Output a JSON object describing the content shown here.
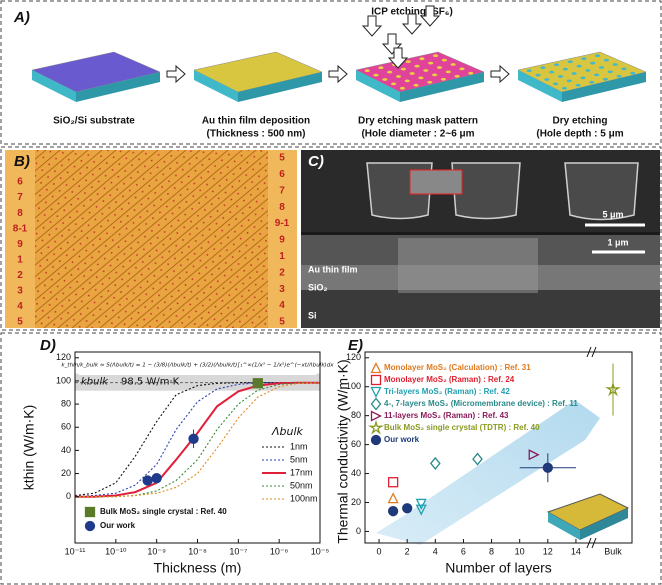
{
  "panel_a": {
    "label": "A)",
    "etching": "ICP etching (SF₆)",
    "steps": [
      {
        "line1": "SiO₂/Si substrate"
      },
      {
        "line1": "Au thin film deposition",
        "line2": "(Thickness : 500 nm)"
      },
      {
        "line1": "Dry etching mask pattern",
        "line2": "(Hole diameter : 2~6 μm"
      },
      {
        "line1": "Dry etching",
        "line2": "(Hole depth : 5 μm"
      }
    ]
  },
  "panel_b": {
    "label": "B)",
    "left_labels": [
      "6",
      "7",
      "8",
      "8-1",
      "9",
      "1",
      "2",
      "3",
      "4",
      "5"
    ],
    "right_labels": [
      "5",
      "6",
      "7",
      "8",
      "9-1",
      "9",
      "1",
      "2",
      "3",
      "4",
      "5"
    ]
  },
  "panel_c": {
    "label": "C)",
    "scale_top": "5 μm",
    "scale_bottom": "1 μm",
    "layer_au": "Au thin film",
    "layer_sio2": "SiO₂",
    "layer_si": "Si"
  },
  "chart_data": [
    {
      "type": "line",
      "panel_label": "D)",
      "formula": "k_thin/k_bulk ≈ S(Λbulk/t) = 1 − (3/8)(Λbulk/t) + (3/2)(Λbulk/t)∫₁^∞(1/x³ − 1/x⁵)e^(−xt/Λbulk)dx",
      "kbulk_symbol": "kbulk",
      "kbulk": {
        "value": 98.5,
        "label": "98.5 W/m·K"
      },
      "xlabel": "Thickness (m)",
      "ylabel": "kthin (W/m·K)",
      "log_x": true,
      "xlim": [
        1e-11,
        1e-05
      ],
      "ylim": [
        -40,
        125
      ],
      "xticks": [
        {
          "value": 1e-11,
          "label": "10⁻¹¹"
        },
        {
          "value": 1e-10,
          "label": "10⁻¹⁰"
        },
        {
          "value": 1e-09,
          "label": "10⁻⁹"
        },
        {
          "value": 1e-08,
          "label": "10⁻⁸"
        },
        {
          "value": 1e-07,
          "label": "10⁻⁷"
        },
        {
          "value": 1e-06,
          "label": "10⁻⁶"
        },
        {
          "value": 1e-05,
          "label": "10⁻⁵"
        }
      ],
      "yticks": [
        0,
        20,
        40,
        60,
        80,
        100,
        120
      ],
      "legend_title": "Λbulk",
      "x": [
        1e-11,
        3e-11,
        1e-10,
        3e-10,
        1e-09,
        3e-09,
        1e-08,
        3e-08,
        1e-07,
        3e-07,
        1e-06,
        3e-06,
        1e-05
      ],
      "series": [
        {
          "name": "1nm",
          "color": "#111111",
          "dash": "2,2",
          "values": [
            1,
            3,
            12,
            35,
            65,
            88,
            96,
            98,
            98.5,
            98.5,
            98.5,
            98.5,
            98.5
          ]
        },
        {
          "name": "5nm",
          "color": "#2a3fb0",
          "dash": "2,2",
          "values": [
            0,
            1,
            3,
            10,
            28,
            58,
            82,
            93,
            97,
            98.5,
            98.5,
            98.5,
            98.5
          ]
        },
        {
          "name": "17nm",
          "color": "#e0203a",
          "dash": "",
          "values": [
            0,
            0,
            1,
            4,
            12,
            32,
            55,
            78,
            91,
            96,
            98,
            98.5,
            98.5
          ]
        },
        {
          "name": "50nm",
          "color": "#3a8a3a",
          "dash": "2,2",
          "values": [
            0,
            0,
            0,
            1,
            5,
            14,
            32,
            58,
            80,
            92,
            97,
            98.5,
            98.5
          ]
        },
        {
          "name": "100nm",
          "color": "#e08a20",
          "dash": "2,2",
          "values": [
            0,
            0,
            0,
            1,
            3,
            8,
            20,
            42,
            68,
            86,
            95,
            98,
            98.5
          ]
        }
      ],
      "points": [
        {
          "name": "Bulk MoS₂ single crystal : Ref. 40",
          "color": "#5a7a2a",
          "marker": "square",
          "x": [
            3e-07
          ],
          "values": [
            98
          ]
        },
        {
          "name": "Our work",
          "color": "#1f3a8a",
          "marker": "circle",
          "x": [
            6e-10,
            1e-09,
            8e-09
          ],
          "values": [
            14,
            16,
            50
          ],
          "errors": [
            null,
            null,
            8
          ]
        }
      ]
    },
    {
      "type": "scatter",
      "panel_label": "E)",
      "xlabel": "Number of layers",
      "ylabel": "Thermal conductivity (W/m·K)",
      "xlim": [
        -1,
        15
      ],
      "ylim": [
        -8,
        124
      ],
      "xticks": [
        0,
        2,
        4,
        6,
        8,
        10,
        12,
        14
      ],
      "bulk_label": "Bulk",
      "yticks": [
        0,
        20,
        40,
        60,
        80,
        100,
        120
      ],
      "series": [
        {
          "name": "Monolayer MoS₂ (Calculation) : Ref. 31",
          "color": "#e07a20",
          "marker": "tri-up",
          "x": [
            1
          ],
          "values": [
            23
          ]
        },
        {
          "name": "Monolayer MoS₂ (Raman) : Ref. 24",
          "color": "#e02030",
          "marker": "square",
          "x": [
            1
          ],
          "values": [
            34
          ]
        },
        {
          "name": "Tri-layers MoS₂ (Raman) : Ref. 42",
          "color": "#20a0b0",
          "marker": "tri-down",
          "x": [
            3,
            3
          ],
          "values": [
            15,
            19
          ]
        },
        {
          "name": "4-, 7-layers MoS₂ (Micromembrane device) : Ref. 11",
          "color": "#2a8a8a",
          "marker": "diamond",
          "x": [
            4,
            7
          ],
          "values": [
            47,
            50
          ]
        },
        {
          "name": "11-layers MoS₂ (Raman) : Ref. 43",
          "color": "#8a1a5a",
          "marker": "tri-right",
          "x": [
            11
          ],
          "values": [
            53
          ]
        },
        {
          "name": "Bulk MoS₂ single crystal (TDTR) : Ref. 40",
          "color": "#8a9a20",
          "marker": "star",
          "x": [
            "Bulk"
          ],
          "values": [
            98
          ],
          "errors": [
            18
          ]
        },
        {
          "name": "Our work",
          "color": "#1f3a7a",
          "marker": "circle",
          "filled": true,
          "x": [
            1,
            2,
            12
          ],
          "values": [
            14,
            16,
            44
          ],
          "errors": [
            null,
            null,
            10
          ],
          "x_errors": [
            null,
            null,
            2
          ]
        }
      ]
    }
  ]
}
